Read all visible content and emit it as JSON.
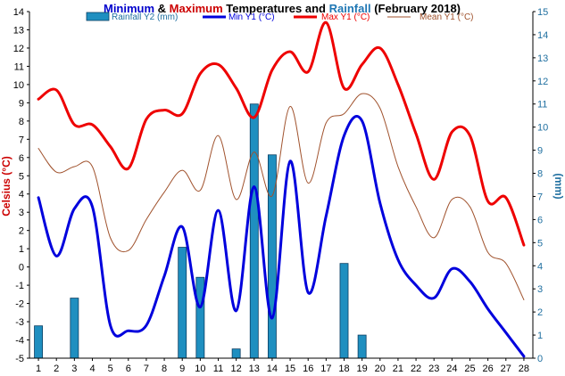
{
  "chart_data": {
    "type": "bar+line",
    "title_parts": [
      {
        "text": "Minimum",
        "color": "#0000cc"
      },
      {
        "text": " & ",
        "color": "#000000"
      },
      {
        "text": "Maximum",
        "color": "#cc0000"
      },
      {
        "text": " Temperatures and ",
        "color": "#000000"
      },
      {
        "text": "Rainfall",
        "color": "#1f77b4"
      },
      {
        "text": " (February 2018)",
        "color": "#000000"
      }
    ],
    "ylabel": "Celsius (°C)",
    "y2label": "(mm)",
    "ylabel_color": "#cc0000",
    "y2label_color": "#1f6fa0",
    "x": [
      1,
      2,
      3,
      4,
      5,
      6,
      7,
      8,
      9,
      10,
      11,
      12,
      13,
      14,
      15,
      16,
      17,
      18,
      19,
      20,
      21,
      22,
      23,
      24,
      25,
      26,
      27,
      28
    ],
    "xlim": [
      0.5,
      28.5
    ],
    "ylim": [
      -5,
      14
    ],
    "y2lim": [
      0,
      15
    ],
    "y_ticks": [
      -5,
      -4,
      -3,
      -2,
      -1,
      0,
      1,
      2,
      3,
      4,
      5,
      6,
      7,
      8,
      9,
      10,
      11,
      12,
      13,
      14
    ],
    "y2_ticks": [
      0,
      1,
      2,
      3,
      4,
      5,
      6,
      7,
      8,
      9,
      10,
      11,
      12,
      13,
      14,
      15
    ],
    "grid": false,
    "legend_position": "top",
    "series": [
      {
        "name": "Rainfall Y2 (mm)",
        "kind": "bar",
        "axis": "y2",
        "color": "#1f8fc0",
        "values": [
          1.4,
          0,
          2.6,
          0,
          0,
          0,
          0,
          0,
          4.8,
          3.5,
          0,
          0.4,
          11,
          8.8,
          0,
          0,
          0,
          4.1,
          1,
          0,
          0,
          0,
          0,
          0,
          0,
          0,
          0,
          0
        ]
      },
      {
        "name": "Min Y1 (°C)",
        "kind": "line",
        "axis": "y",
        "color": "#0000dd",
        "width": 3,
        "values": [
          3.8,
          0.6,
          3.2,
          3.3,
          -3.2,
          -3.5,
          -3.2,
          -0.5,
          2.2,
          -2.2,
          3.1,
          -2.4,
          4.4,
          -2.8,
          5.8,
          -1.4,
          2.8,
          7.2,
          8.0,
          3.5,
          0.4,
          -1.0,
          -1.7,
          -0.1,
          -0.8,
          -2.3,
          -3.6,
          -4.9
        ]
      },
      {
        "name": "Max Y1 (°C)",
        "kind": "line",
        "axis": "y",
        "color": "#ee0000",
        "width": 3,
        "values": [
          9.2,
          9.7,
          7.8,
          7.8,
          6.6,
          5.4,
          8.1,
          8.6,
          8.4,
          10.6,
          11.1,
          9.8,
          8.2,
          10.8,
          11.8,
          10.7,
          13.4,
          9.8,
          11.1,
          12.0,
          10.0,
          7.3,
          4.8,
          7.4,
          7.2,
          3.6,
          3.8,
          1.2
        ]
      },
      {
        "name": "Mean Y1 (°C)",
        "kind": "line",
        "axis": "y",
        "color": "#a0522d",
        "width": 1,
        "values": [
          6.5,
          5.2,
          5.5,
          5.5,
          1.6,
          0.9,
          2.6,
          4.1,
          5.3,
          4.2,
          7.2,
          3.7,
          6.3,
          3.9,
          8.8,
          4.6,
          7.9,
          8.4,
          9.5,
          8.7,
          5.5,
          3.3,
          1.6,
          3.7,
          3.3,
          0.8,
          0.2,
          -1.8
        ]
      }
    ]
  }
}
